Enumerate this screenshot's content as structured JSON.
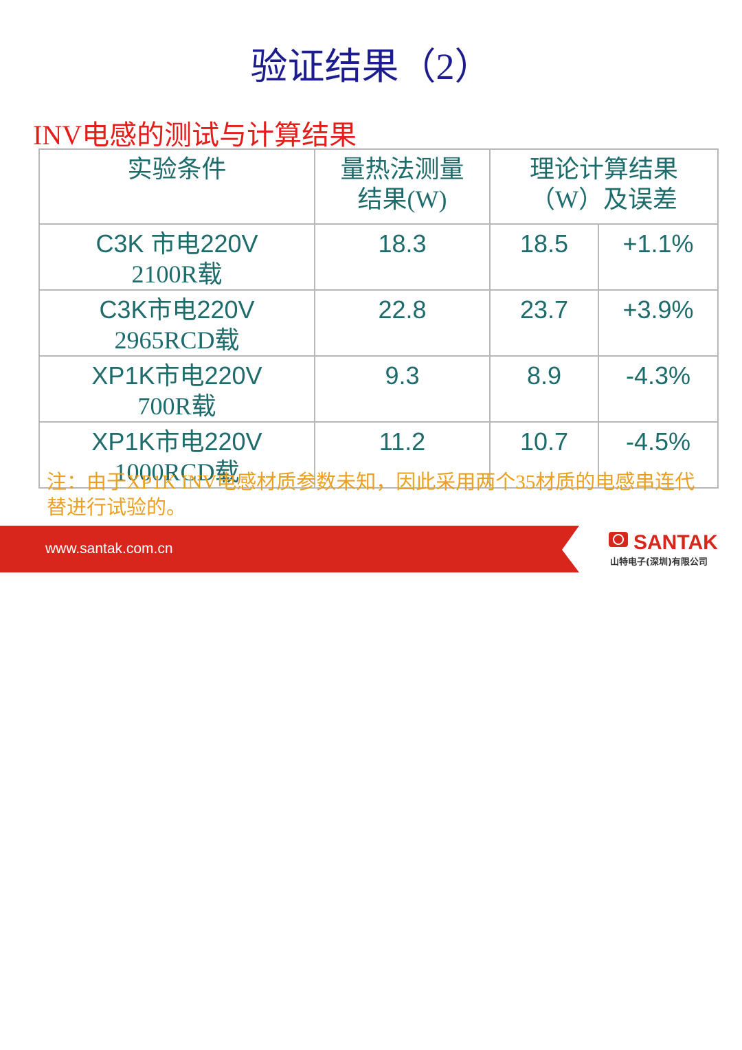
{
  "header": {
    "title": "验证结果（2）",
    "subtitle": "INV电感的测试与计算结果"
  },
  "table": {
    "columns": [
      "实验条件",
      "量热法测量结果(W)",
      "理论计算结果（W）及误差"
    ],
    "rows": [
      [
        [
          "C3K 市电220V",
          "2100R载"
        ],
        "18.3",
        "18.5",
        "+1.1%"
      ],
      [
        [
          "C3K市电220V",
          "2965RCD载"
        ],
        "22.8",
        "23.7",
        "+3.9%"
      ],
      [
        [
          "XP1K市电220V",
          "700R载"
        ],
        "9.3",
        "8.9",
        "-4.3%"
      ],
      [
        [
          "XP1K市电220V",
          "1000RCD载"
        ],
        "11.2",
        "10.7",
        "-4.5%"
      ]
    ]
  },
  "note": "注：由于XP1K INV电感材质参数未知，因此采用两个35材质的电感串连代替进行试验的。",
  "footer": {
    "url": "www.santak.com.cn",
    "brand": "SANTAK",
    "company": "山特电子(深圳)有限公司"
  }
}
